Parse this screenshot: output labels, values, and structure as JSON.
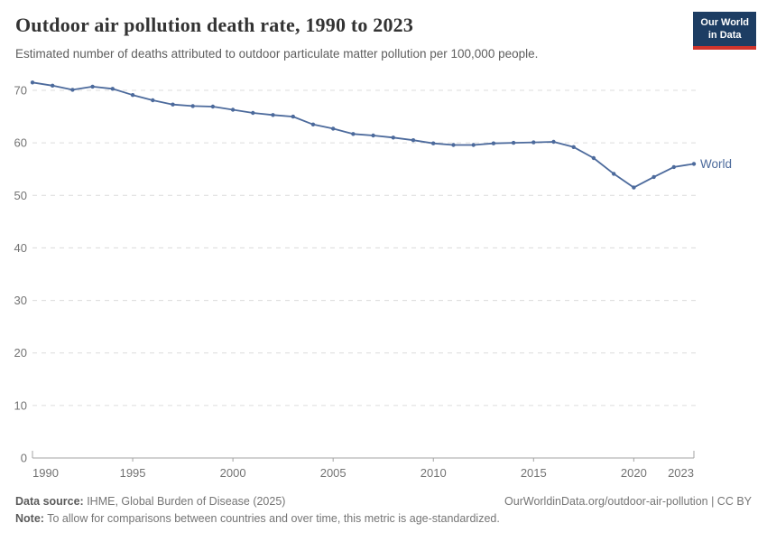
{
  "header": {
    "title": "Outdoor air pollution death rate, 1990 to 2023",
    "subtitle": "Estimated number of deaths attributed to outdoor particulate matter pollution per 100,000 people.",
    "logo": {
      "line1": "Our World",
      "line2": "in Data"
    }
  },
  "chart_data": {
    "type": "line",
    "title": "Outdoor air pollution death rate, 1990 to 2023",
    "xlabel": "",
    "ylabel": "",
    "xlim": [
      1990,
      2023
    ],
    "ylim": [
      0,
      70
    ],
    "xticks": [
      1990,
      1995,
      2000,
      2005,
      2010,
      2015,
      2020,
      2023
    ],
    "yticks": [
      0,
      10,
      20,
      30,
      40,
      50,
      60,
      70
    ],
    "grid": "horizontal-dashed",
    "legend_position": "end-of-line-label",
    "series": [
      {
        "name": "World",
        "color": "#4c6a9c",
        "x": [
          1990,
          1991,
          1992,
          1993,
          1994,
          1995,
          1996,
          1997,
          1998,
          1999,
          2000,
          2001,
          2002,
          2003,
          2004,
          2005,
          2006,
          2007,
          2008,
          2009,
          2010,
          2011,
          2012,
          2013,
          2014,
          2015,
          2016,
          2017,
          2018,
          2019,
          2020,
          2021,
          2022,
          2023
        ],
        "values": [
          71.5,
          70.9,
          70.1,
          70.7,
          70.3,
          69.1,
          68.1,
          67.3,
          67.0,
          66.9,
          66.3,
          65.7,
          65.3,
          65.0,
          63.5,
          62.7,
          61.7,
          61.4,
          61.0,
          60.5,
          59.9,
          59.6,
          59.6,
          59.9,
          60.0,
          60.1,
          60.2,
          59.2,
          57.1,
          54.1,
          51.5,
          53.5,
          55.4,
          56.0
        ]
      }
    ]
  },
  "footer": {
    "data_source_label": "Data source:",
    "data_source_value": " IHME, Global Burden of Disease (2025)",
    "credit": "OurWorldinData.org/outdoor-air-pollution | CC BY",
    "note_label": "Note:",
    "note_value": " To allow for comparisons between countries and over time, this metric is age-standardized."
  },
  "colors": {
    "line": "#4c6a9c",
    "grid": "#dcdcdc",
    "axis": "#a3a3a3",
    "tick_text": "#737373",
    "logo_bg": "#1d3d63",
    "logo_stripe": "#d0342c"
  }
}
